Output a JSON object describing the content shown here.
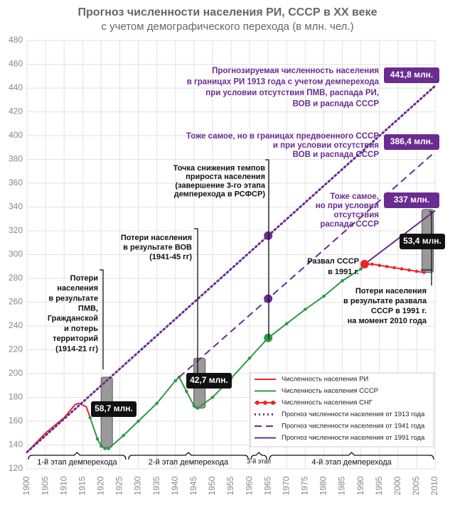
{
  "chart_data": {
    "type": "line",
    "title": "Прогноз численности населения РИ, СССР в XX веке",
    "subtitle": "с учетом демографического перехода (в млн. чел.)",
    "xlim": [
      1900,
      2010
    ],
    "xticks": [
      1900,
      1905,
      1910,
      1915,
      1920,
      1925,
      1930,
      1935,
      1940,
      1945,
      1950,
      1955,
      1960,
      1965,
      1970,
      1975,
      1980,
      1985,
      1990,
      1995,
      2000,
      2005,
      2010
    ],
    "ylim": [
      120,
      480
    ],
    "yticks": [
      120,
      140,
      160,
      180,
      200,
      220,
      240,
      260,
      280,
      300,
      320,
      340,
      360,
      380,
      400,
      420,
      440,
      460,
      480
    ],
    "grid": true,
    "series": [
      {
        "name": "Численность населения РИ",
        "color": "#e8262a",
        "style": "solid",
        "markers": false,
        "x": [
          1900,
          1905,
          1910,
          1913,
          1914,
          1916,
          1917
        ],
        "values": [
          134,
          150,
          163,
          174,
          175,
          172,
          163
        ]
      },
      {
        "name": "Численность населения СССР",
        "color": "#2e9a47",
        "style": "solid",
        "markers": true,
        "x": [
          1917,
          1919,
          1920,
          1921,
          1922,
          1926,
          1930,
          1935,
          1940,
          1941,
          1943,
          1945,
          1946,
          1950,
          1955,
          1960,
          1965,
          1970,
          1975,
          1980,
          1985,
          1990,
          1991
        ],
        "values": [
          163,
          145,
          139,
          137,
          137,
          148,
          160,
          175,
          194,
          197,
          185,
          173,
          171,
          180,
          196,
          213,
          230,
          242,
          254,
          265,
          278,
          288,
          292
        ]
      },
      {
        "name": "Численность населения СНГ",
        "color": "#e8262a",
        "style": "solid",
        "markers": true,
        "x": [
          1991,
          1993,
          1995,
          1997,
          1999,
          2001,
          2003,
          2005,
          2007
        ],
        "values": [
          292,
          292,
          291,
          290,
          289,
          288,
          287,
          286,
          285
        ]
      },
      {
        "name": "Прогноз численности населения от 1913 года",
        "color": "#6a2c91",
        "style": "dotted",
        "markers": false,
        "x": [
          1900,
          2010
        ],
        "values": [
          134,
          441.8
        ],
        "value_labels": [
          null,
          "441,8 млн."
        ]
      },
      {
        "name": "Прогноз численности населения от 1941 года",
        "color": "#6a2c91",
        "style": "dashed",
        "markers": false,
        "x": [
          1941,
          2010
        ],
        "values": [
          197,
          386.4
        ],
        "value_labels": [
          null,
          "386,4 млн."
        ]
      },
      {
        "name": "Прогноз численности населения от 1991 года",
        "color": "#6a2c91",
        "style": "solid",
        "markers": false,
        "x": [
          1991,
          2010
        ],
        "values": [
          292,
          337
        ],
        "value_labels": [
          null,
          "337 млн."
        ]
      }
    ],
    "key_points": {
      "x": [
        1965,
        1965,
        1965,
        1991
      ],
      "values": [
        316,
        263,
        230,
        292
      ],
      "colors": [
        "#6a2c91",
        "#6a2c91",
        "#2e9a47",
        "#e8262a"
      ]
    },
    "losses": [
      {
        "x": 1921.5,
        "top": 197,
        "bottom": 138,
        "value": 58.7,
        "label": "58,7 млн."
      },
      {
        "x": 1946.5,
        "top": 213,
        "bottom": 171,
        "value": 42.7,
        "label": "42,7 млн."
      },
      {
        "x": 2008,
        "top": 338,
        "bottom": 285,
        "value": 53.4,
        "label": "53,4 млн."
      }
    ],
    "phases": [
      {
        "from": 1900,
        "to": 1927,
        "label": "1-й этап демперехода"
      },
      {
        "from": 1927,
        "to": 1960,
        "label": "2-й этап демперехода"
      },
      {
        "from": 1960,
        "to": 1965,
        "label": "3-й этап"
      },
      {
        "from": 1965,
        "to": 2010,
        "label": "4-й этап демперехода"
      }
    ],
    "annotations": [
      {
        "color": "#6a2c91",
        "lines": [
          "Прогнозируемая численность населения",
          "в границах РИ 1913 года с учетом демперехода",
          "при условии отсутствия ПМВ, распада РИ,",
          "ВОВ и распада СССР"
        ]
      },
      {
        "color": "#6a2c91",
        "lines": [
          "Тоже самое, но в границах предвоенного СССР",
          "и при условии отсутствия",
          "ВОВ и распада СССР"
        ]
      },
      {
        "color": "#6a2c91",
        "lines": [
          "Тоже самое,",
          "но при условии",
          "отсутствия",
          "распада СССР"
        ]
      },
      {
        "color": "#111111",
        "lines": [
          "Потери",
          "населения",
          "в результате",
          "ПМВ,",
          "Гражданской",
          "и потерь",
          "территорий",
          "(1914-21 гг)"
        ]
      },
      {
        "color": "#111111",
        "lines": [
          "Потери населения",
          "в результате ВОВ",
          "(1941-45 гг)"
        ]
      },
      {
        "color": "#111111",
        "lines": [
          "Точка снижения темпов",
          "прироста населения",
          "(завершение 3-го этапа",
          "демперехода в РСФСР)"
        ]
      },
      {
        "color": "#111111",
        "lines": [
          "Развал СССР",
          "в 1991 г."
        ]
      },
      {
        "color": "#111111",
        "lines": [
          "Потери населения",
          "в результате развала",
          "СССР в 1991 г.",
          "на момент 2010 года"
        ]
      }
    ]
  }
}
